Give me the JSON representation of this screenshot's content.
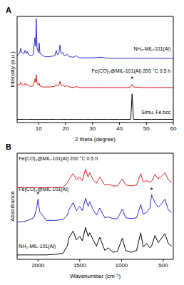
{
  "chart_data": [
    {
      "type": "line",
      "title": "A",
      "x_label": "2 theta (degree)",
      "y_label": "Intensity (a.u.)",
      "tick_labels": "x",
      "grid": false,
      "xlim": [
        2,
        60
      ],
      "xticks": [
        10,
        20,
        30,
        40,
        50,
        60
      ],
      "ylim": [
        0,
        10
      ],
      "x": [
        2,
        3,
        3.3,
        3.6,
        4.5,
        5,
        5.3,
        5.8,
        6.2,
        7,
        8,
        8.6,
        8.9,
        9.1,
        9.4,
        10,
        10.2,
        10.5,
        11.5,
        12.5,
        14,
        16,
        16.5,
        17,
        17.5,
        17.9,
        18.3,
        19,
        19.5,
        20.6,
        21.5,
        23,
        24,
        25,
        27,
        30,
        33,
        36,
        40,
        43,
        44.2,
        44.7,
        45.2,
        48,
        52,
        56,
        60
      ],
      "series": [
        {
          "color": "#2b2bd0",
          "values": [
            6.3,
            6.6,
            7.0,
            6.6,
            6.5,
            6.8,
            6.5,
            6.7,
            6.4,
            6.3,
            6.4,
            8.0,
            7.2,
            9.8,
            7.0,
            6.6,
            7.5,
            6.5,
            6.3,
            6.2,
            6.2,
            6.3,
            6.8,
            6.4,
            6.5,
            7.3,
            6.5,
            6.6,
            6.3,
            6.4,
            6.2,
            6.15,
            6.3,
            6.1,
            6.1,
            6.1,
            6.15,
            6.05,
            6.05,
            6.05,
            6.05,
            6.05,
            6.05,
            6.05,
            6.05,
            6.05,
            6.05
          ]
        },
        {
          "color": "#e02020",
          "values": [
            3.5,
            3.6,
            3.8,
            3.6,
            3.5,
            3.7,
            3.5,
            3.6,
            3.45,
            3.4,
            3.45,
            4.1,
            3.8,
            4.5,
            3.7,
            3.5,
            3.7,
            3.45,
            3.35,
            3.35,
            3.35,
            3.4,
            3.6,
            3.45,
            3.5,
            3.9,
            3.5,
            3.55,
            3.4,
            3.45,
            3.35,
            3.3,
            3.4,
            3.3,
            3.3,
            3.3,
            3.3,
            3.3,
            3.3,
            3.3,
            3.35,
            3.6,
            3.35,
            3.3,
            3.3,
            3.3,
            3.3
          ]
        },
        {
          "color": "#000000",
          "values": [
            0.3,
            0.3,
            0.3,
            0.3,
            0.3,
            0.3,
            0.3,
            0.3,
            0.3,
            0.3,
            0.3,
            0.3,
            0.3,
            0.3,
            0.3,
            0.3,
            0.3,
            0.3,
            0.3,
            0.3,
            0.3,
            0.3,
            0.3,
            0.3,
            0.3,
            0.3,
            0.3,
            0.3,
            0.3,
            0.3,
            0.3,
            0.3,
            0.3,
            0.3,
            0.3,
            0.3,
            0.3,
            0.3,
            0.3,
            0.3,
            0.3,
            2.7,
            0.3,
            0.3,
            0.3,
            0.3,
            0.3
          ]
        }
      ],
      "annotations": [
        {
          "text": "NH₂-MIL-101(Al)",
          "x": 59,
          "y": 6.8
        },
        {
          "text": "Fe(CO)₅@MIL-101(Al) 200 °C 0.5 h",
          "x": 59,
          "y": 4.7
        },
        {
          "text": "Simu. Fe bcc",
          "x": 59,
          "y": 0.8
        },
        {
          "text": "*",
          "x": 44.7,
          "y": 3.85
        }
      ]
    },
    {
      "type": "line",
      "title": "B",
      "x_label": "Wavenumber (cm⁻¹)",
      "y_label": "Absorbance",
      "tick_labels": "x",
      "grid": false,
      "xlim": [
        2250,
        380
      ],
      "xticks": [
        2000,
        1500,
        1000,
        500
      ],
      "ylim": [
        0,
        12
      ],
      "x": [
        2250,
        2150,
        2050,
        2020,
        2000,
        1980,
        1900,
        1800,
        1700,
        1650,
        1630,
        1580,
        1540,
        1500,
        1470,
        1430,
        1400,
        1380,
        1340,
        1300,
        1260,
        1200,
        1160,
        1100,
        1050,
        990,
        950,
        880,
        820,
        770,
        740,
        700,
        660,
        640,
        600,
        560,
        520,
        480,
        440,
        400
      ],
      "series": [
        {
          "color": "#e02020",
          "values": [
            8.1,
            8.1,
            8.1,
            8.1,
            8.1,
            8.1,
            8.1,
            8.1,
            8.15,
            8.6,
            9.0,
            9.7,
            9.0,
            9.3,
            8.9,
            10.2,
            9.3,
            9.8,
            9.0,
            8.6,
            9.3,
            8.4,
            8.5,
            8.3,
            8.3,
            9.1,
            8.4,
            8.3,
            8.4,
            9.7,
            8.7,
            8.9,
            8.7,
            8.8,
            9.6,
            9.1,
            9.4,
            9.8,
            9.0,
            8.7
          ]
        },
        {
          "color": "#2b2bd0",
          "values": [
            4.2,
            4.3,
            4.7,
            5.6,
            6.8,
            5.4,
            4.4,
            4.4,
            4.5,
            5.0,
            5.6,
            6.4,
            5.5,
            6.0,
            5.5,
            6.9,
            6.0,
            6.5,
            5.6,
            5.0,
            5.8,
            4.7,
            4.8,
            4.6,
            4.6,
            5.7,
            4.7,
            4.6,
            4.7,
            6.2,
            5.1,
            5.3,
            5.8,
            7.3,
            6.4,
            5.9,
            6.3,
            6.8,
            5.6,
            5.3
          ]
        },
        {
          "color": "#000000",
          "values": [
            0.5,
            0.5,
            0.5,
            0.5,
            0.5,
            0.5,
            0.5,
            0.55,
            0.7,
            1.5,
            2.4,
            3.2,
            2.2,
            2.6,
            2.1,
            3.6,
            2.6,
            3.0,
            2.2,
            1.5,
            2.5,
            1.0,
            1.3,
            0.8,
            0.9,
            2.4,
            1.0,
            0.8,
            1.0,
            3.0,
            1.4,
            1.8,
            1.3,
            1.5,
            2.7,
            1.9,
            2.4,
            2.9,
            1.8,
            1.5
          ]
        }
      ],
      "annotations": [
        {
          "text": "Fe(CO)₅@MIL-101(Al) 200 °C 0.5 h",
          "x": 2230,
          "y": 11.2
        },
        {
          "text": "Fe(CO)₅@MIL-101(Al)",
          "x": 2230,
          "y": 7.7
        },
        {
          "text": "NH₂-MIL-101(Al)",
          "x": 2230,
          "y": 1.3
        },
        {
          "text": "*",
          "x": 2000,
          "y": 7.0
        },
        {
          "text": "*",
          "x": 640,
          "y": 7.5
        }
      ]
    }
  ]
}
